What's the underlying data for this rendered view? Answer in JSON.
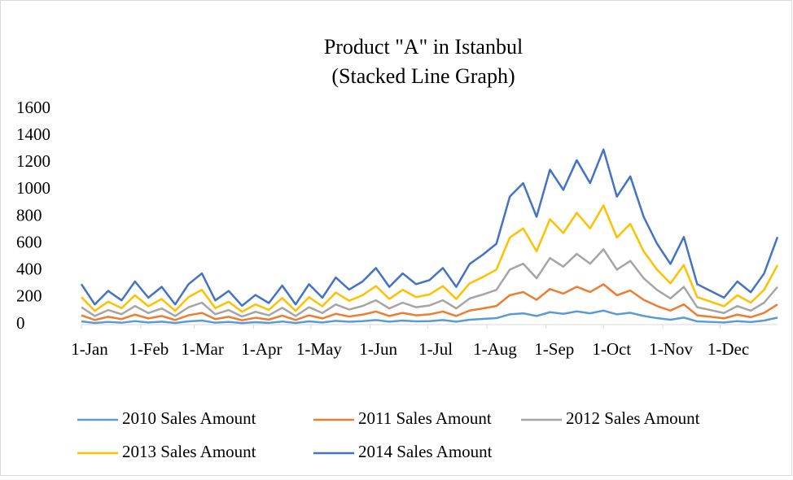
{
  "chart_data": {
    "type": "stacked-line",
    "title": "Product \"A\" in Istanbul",
    "subtitle": "(Stacked Line Graph)",
    "x": [
      1,
      8,
      15,
      22,
      29,
      36,
      43,
      50,
      57,
      64,
      71,
      78,
      85,
      92,
      99,
      106,
      113,
      120,
      127,
      134,
      141,
      148,
      155,
      162,
      169,
      176,
      183,
      190,
      197,
      204,
      211,
      218,
      225,
      232,
      239,
      246,
      253,
      260,
      267,
      274,
      281,
      288,
      295,
      302,
      309,
      316,
      323,
      330,
      337,
      344,
      351,
      358,
      365
    ],
    "xlim": [
      1,
      365
    ],
    "xticks": [
      {
        "value": 1,
        "label": "1-Jan"
      },
      {
        "value": 32,
        "label": "1-Feb"
      },
      {
        "value": 60,
        "label": "1-Mar"
      },
      {
        "value": 91,
        "label": "1-Apr"
      },
      {
        "value": 121,
        "label": "1-May"
      },
      {
        "value": 152,
        "label": "1-Jun"
      },
      {
        "value": 182,
        "label": "1-Jul"
      },
      {
        "value": 213,
        "label": "1-Aug"
      },
      {
        "value": 244,
        "label": "1-Sep"
      },
      {
        "value": 274,
        "label": "1-Oct"
      },
      {
        "value": 305,
        "label": "1-Nov"
      },
      {
        "value": 335,
        "label": "1-Dec"
      }
    ],
    "ylim": [
      0,
      1600
    ],
    "yticks": [
      0,
      200,
      400,
      600,
      800,
      1000,
      1200,
      1400,
      1600
    ],
    "grid": false,
    "legend": "bottom",
    "series": [
      {
        "name": "2010 Sales Amount",
        "color": "#5b9bd5",
        "values": [
          24,
          12,
          20,
          14,
          26,
          16,
          22,
          12,
          24,
          30,
          14,
          20,
          11,
          18,
          13,
          23,
          12,
          24,
          16,
          28,
          21,
          26,
          34,
          22,
          30,
          24,
          26,
          34,
          22,
          36,
          42,
          48,
          76,
          84,
          64,
          92,
          80,
          98,
          84,
          104,
          76,
          88,
          64,
          48,
          36,
          52,
          24,
          20,
          16,
          26,
          19,
          30,
          52
        ]
      },
      {
        "name": "2011 Sales Amount",
        "color": "#ed7d31",
        "values": [
          45,
          22,
          38,
          27,
          48,
          30,
          42,
          22,
          45,
          57,
          27,
          38,
          21,
          33,
          24,
          44,
          22,
          45,
          30,
          52,
          39,
          48,
          63,
          42,
          57,
          45,
          50,
          63,
          42,
          68,
          78,
          90,
          142,
          158,
          120,
          172,
          150,
          183,
          158,
          195,
          142,
          165,
          120,
          90,
          68,
          98,
          45,
          38,
          30,
          48,
          36,
          57,
          98
        ]
      },
      {
        "name": "2012 Sales Amount",
        "color": "#a5a5a5",
        "values": [
          60,
          30,
          50,
          36,
          64,
          40,
          56,
          30,
          60,
          76,
          36,
          50,
          28,
          44,
          32,
          58,
          30,
          60,
          40,
          70,
          52,
          64,
          84,
          56,
          76,
          60,
          66,
          84,
          56,
          90,
          104,
          120,
          190,
          210,
          160,
          230,
          200,
          244,
          210,
          260,
          190,
          220,
          160,
          120,
          90,
          130,
          60,
          50,
          40,
          64,
          48,
          76,
          130
        ]
      },
      {
        "name": "2013 Sales Amount",
        "color": "#ffc000",
        "values": [
          75,
          38,
          62,
          45,
          80,
          50,
          70,
          38,
          75,
          95,
          45,
          62,
          35,
          55,
          40,
          72,
          38,
          75,
          50,
          88,
          65,
          80,
          105,
          70,
          95,
          75,
          82,
          105,
          70,
          112,
          130,
          150,
          238,
          262,
          200,
          288,
          250,
          305,
          262,
          325,
          238,
          275,
          200,
          150,
          112,
          162,
          75,
          62,
          50,
          80,
          60,
          95,
          162
        ]
      },
      {
        "name": "2014 Sales Amount",
        "color": "#4472c4",
        "values": [
          96,
          48,
          80,
          58,
          102,
          64,
          90,
          48,
          96,
          122,
          58,
          80,
          45,
          70,
          51,
          93,
          48,
          96,
          64,
          112,
          83,
          102,
          134,
          90,
          122,
          96,
          106,
          134,
          90,
          144,
          166,
          192,
          304,
          336,
          256,
          368,
          320,
          390,
          336,
          416,
          304,
          352,
          256,
          192,
          144,
          208,
          96,
          80,
          64,
          102,
          77,
          122,
          208
        ]
      }
    ]
  }
}
